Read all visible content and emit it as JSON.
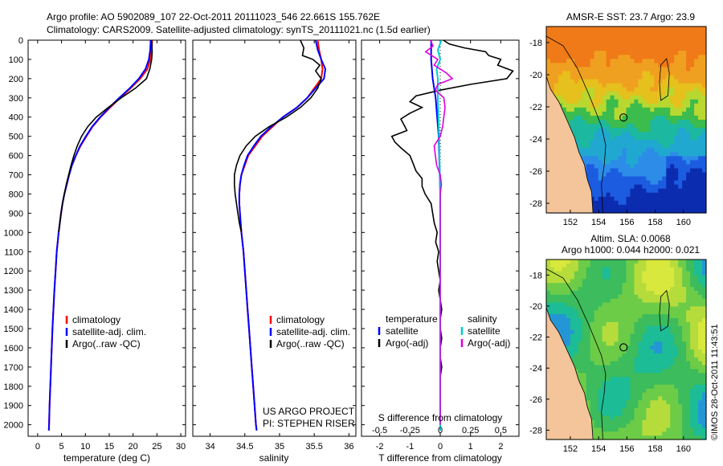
{
  "header": {
    "line1": "Argo profile: AO 5902089_107 22-Oct-2011 20111023_546 22.661S 155.762E",
    "line2": "Climatology: CARS2009. Satellite-adjusted climatology: synTS_20111021.nc (1.5d earlier)"
  },
  "chart_data": [
    {
      "type": "line",
      "id": "temperature",
      "xlabel": "temperature (deg C)",
      "ylabel": "depth",
      "xlim": [
        -2,
        31
      ],
      "ylim": [
        0,
        2060
      ],
      "y_inverted": true,
      "x_ticks": [
        0,
        5,
        10,
        15,
        20,
        25,
        30
      ],
      "y_ticks": [
        0,
        100,
        200,
        300,
        400,
        500,
        600,
        700,
        800,
        900,
        1000,
        1100,
        1200,
        1300,
        1400,
        1500,
        1600,
        1700,
        1800,
        1900,
        2000
      ],
      "legend": {
        "position": "lower-right",
        "entries": [
          "climatology",
          "satellite-adj. clim.",
          "Argo(..raw -QC)"
        ]
      },
      "series": [
        {
          "name": "climatology",
          "color": "#ff0000",
          "depth": [
            0,
            50,
            100,
            150,
            200,
            250,
            300,
            350,
            400,
            450,
            500,
            550,
            600,
            650,
            700,
            750,
            800,
            850,
            900,
            1000,
            1100,
            1200,
            1300,
            1400,
            1500,
            1600,
            1700,
            1800,
            1900,
            2000,
            2030
          ],
          "values": [
            24.0,
            23.9,
            23.6,
            23.0,
            21.5,
            19.5,
            17.3,
            15.2,
            13.2,
            11.5,
            10.2,
            9.0,
            8.0,
            7.2,
            6.6,
            6.1,
            5.6,
            5.2,
            4.9,
            4.4,
            4.0,
            3.75,
            3.5,
            3.3,
            3.1,
            2.95,
            2.8,
            2.65,
            2.5,
            2.4,
            2.35
          ]
        },
        {
          "name": "satellite-adj. clim.",
          "color": "#0000ff",
          "depth": [
            0,
            50,
            100,
            150,
            200,
            250,
            300,
            350,
            400,
            450,
            500,
            550,
            600,
            650,
            700,
            750,
            800,
            850,
            900,
            1000,
            1100,
            1200,
            1300,
            1400,
            1500,
            1600,
            1700,
            1800,
            1900,
            2000,
            2030
          ],
          "values": [
            23.7,
            23.6,
            23.3,
            22.6,
            21.2,
            19.3,
            17.1,
            15.0,
            13.1,
            11.4,
            10.1,
            8.9,
            8.0,
            7.2,
            6.6,
            6.1,
            5.6,
            5.2,
            4.9,
            4.4,
            4.0,
            3.75,
            3.5,
            3.3,
            3.1,
            2.95,
            2.8,
            2.65,
            2.5,
            2.4,
            2.35
          ]
        },
        {
          "name": "Argo(..raw -QC)",
          "color": "#000000",
          "depth": [
            0,
            60,
            100,
            150,
            200,
            250,
            300,
            350,
            400,
            450,
            500,
            550,
            600,
            650,
            700,
            750,
            800,
            850,
            900,
            1000
          ],
          "values": [
            23.9,
            24.0,
            23.9,
            23.5,
            22.8,
            20.5,
            17.5,
            14.8,
            12.3,
            10.5,
            9.2,
            8.3,
            7.6,
            7.0,
            6.5,
            6.0,
            5.6,
            5.2,
            4.9,
            4.4
          ]
        }
      ]
    },
    {
      "type": "line",
      "id": "salinity",
      "xlabel": "salinity",
      "ylabel": "",
      "xlim": [
        33.75,
        36.1
      ],
      "ylim": [
        0,
        2060
      ],
      "y_inverted": true,
      "x_ticks": [
        34,
        34.5,
        35,
        35.5,
        36
      ],
      "legend": {
        "position": "lower-right",
        "entries": [
          "climatology",
          "satellite-adj. clim.",
          "Argo(..raw -QC)"
        ]
      },
      "series": [
        {
          "name": "climatology",
          "color": "#ff0000",
          "depth": [
            0,
            50,
            100,
            150,
            200,
            250,
            300,
            350,
            400,
            450,
            500,
            550,
            600,
            650,
            700,
            750,
            800,
            850,
            900,
            1000,
            1100,
            1200,
            1300,
            1400,
            1500,
            1600,
            1700,
            1800,
            1900,
            2000,
            2030
          ],
          "values": [
            35.55,
            35.57,
            35.6,
            35.62,
            35.6,
            35.5,
            35.4,
            35.25,
            35.05,
            34.9,
            34.75,
            34.65,
            34.55,
            34.5,
            34.45,
            34.43,
            34.42,
            34.42,
            34.43,
            34.45,
            34.48,
            34.5,
            34.52,
            34.54,
            34.56,
            34.58,
            34.6,
            34.62,
            34.64,
            34.66,
            34.67
          ]
        },
        {
          "name": "satellite-adj. clim.",
          "color": "#0000ff",
          "depth": [
            0,
            50,
            100,
            150,
            200,
            250,
            300,
            350,
            400,
            450,
            500,
            550,
            600,
            650,
            700,
            750,
            800,
            850,
            900,
            1000,
            1100,
            1200,
            1300,
            1400,
            1500,
            1600,
            1700,
            1800,
            1900,
            2000,
            2030
          ],
          "values": [
            35.52,
            35.55,
            35.6,
            35.66,
            35.64,
            35.52,
            35.4,
            35.25,
            35.05,
            34.88,
            34.73,
            34.63,
            34.54,
            34.49,
            34.45,
            34.43,
            34.42,
            34.42,
            34.43,
            34.45,
            34.48,
            34.5,
            34.52,
            34.54,
            34.56,
            34.58,
            34.6,
            34.62,
            34.64,
            34.66,
            34.67
          ]
        },
        {
          "name": "Argo(..raw -QC)",
          "color": "#000000",
          "depth": [
            0,
            40,
            80,
            100,
            130,
            160,
            200,
            250,
            300,
            350,
            400,
            450,
            500,
            550,
            600,
            650,
            700,
            750,
            800,
            850,
            900,
            950,
            1000
          ],
          "values": [
            35.3,
            35.35,
            35.33,
            35.48,
            35.58,
            35.52,
            35.6,
            35.55,
            35.45,
            35.3,
            35.1,
            34.85,
            34.65,
            34.52,
            34.43,
            34.38,
            34.35,
            34.35,
            34.36,
            34.38,
            34.4,
            34.42,
            34.45
          ]
        }
      ]
    },
    {
      "type": "line",
      "id": "difference",
      "xlabel": "T difference from climatology",
      "xlabel_top": "S difference from climatology",
      "xlim": [
        -2.6,
        2.6
      ],
      "ylim": [
        0,
        2060
      ],
      "y_inverted": true,
      "x_ticks": [
        -2,
        -1,
        0,
        1,
        2
      ],
      "x_ticks_S": [
        -0.5,
        -0.25,
        0,
        0.25,
        0.5
      ],
      "legend_title_left": "temperature",
      "legend_title_right": "salinity",
      "legend": {
        "position": "lower-center",
        "entries": [
          "satellite",
          "Argo(-adj)",
          "satellite",
          "Argo(-adj)"
        ]
      },
      "series": [
        {
          "name": "T satellite",
          "color": "#0000ff",
          "depth": [
            0,
            100,
            200,
            300,
            500,
            800,
            1200,
            1600,
            2030
          ],
          "values": [
            -0.3,
            -0.3,
            -0.25,
            -0.15,
            -0.05,
            0,
            0,
            0,
            0
          ]
        },
        {
          "name": "T Argo(-adj)",
          "color": "#000000",
          "depth": [
            0,
            20,
            40,
            60,
            80,
            100,
            130,
            160,
            200,
            230,
            260,
            290,
            320,
            350,
            380,
            410,
            440,
            470,
            500,
            530,
            560,
            600,
            640,
            680,
            720,
            760,
            800,
            850,
            900,
            950,
            1000,
            1050,
            1100,
            1150,
            1200,
            1250,
            1300,
            1350,
            1400,
            1450,
            1500,
            1550,
            1600,
            1650,
            1700,
            1750,
            1800,
            1850,
            1900,
            1950,
            2000,
            2030
          ],
          "values": [
            0.1,
            0.3,
            0.8,
            1.5,
            1.6,
            2.0,
            1.9,
            2.4,
            2.2,
            1.0,
            0,
            -0.8,
            -1.0,
            -0.6,
            -1.0,
            -1.3,
            -1.2,
            -1.1,
            -1.6,
            -1.5,
            -1.3,
            -1.0,
            -0.9,
            -0.8,
            -0.6,
            -0.6,
            -0.5,
            -0.3,
            -0.25,
            -0.2,
            -0.1,
            -0.15,
            -0.05,
            -0.1,
            -0.05,
            0,
            -0.05,
            0,
            0.05,
            0,
            0,
            0.05,
            0,
            0,
            0.05,
            0,
            0,
            0,
            0,
            0,
            0,
            0
          ]
        },
        {
          "name": "S satellite",
          "color": "#00cccc",
          "depth": [
            0,
            50,
            100,
            150,
            200,
            300,
            500,
            800,
            1200,
            1600,
            2030
          ],
          "values": [
            0.01,
            -0.02,
            0,
            -0.03,
            -0.02,
            -0.02,
            -0.01,
            0,
            0,
            0,
            0
          ]
        },
        {
          "name": "S Argo(-adj)",
          "color": "#dd00dd",
          "depth": [
            0,
            30,
            60,
            100,
            130,
            170,
            200,
            230,
            260,
            300,
            350,
            400,
            450,
            500,
            550,
            600,
            650,
            700,
            750,
            800,
            850,
            900,
            950,
            1000,
            1100,
            1200,
            1300,
            1400,
            1500,
            1600,
            1700,
            1800,
            1900,
            2000
          ],
          "values": [
            -0.08,
            -0.06,
            -0.12,
            -0.02,
            -0.05,
            0.05,
            0.1,
            -0.02,
            -0.04,
            0.03,
            0.04,
            0.03,
            0.02,
            0.0,
            -0.05,
            -0.04,
            -0.03,
            0.0,
            0.01,
            0.0,
            0,
            0,
            0,
            0,
            0,
            0,
            0,
            0,
            0,
            0,
            0,
            0,
            0,
            0
          ]
        }
      ]
    }
  ],
  "labels": {
    "legend_climatology": "climatology",
    "legend_satellite_clim": "satellite-adj. clim.",
    "legend_argo_raw": "Argo(..raw -QC)",
    "diff_temperature": "temperature",
    "diff_salinity": "salinity",
    "diff_satellite": "satellite",
    "diff_argo": "Argo(-adj)",
    "project_line1": "US ARGO PROJECT",
    "project_line2": "PI: STEPHEN RISER",
    "s_diff_label": "S difference from climatology",
    "t_diff_label": "T difference from climatology",
    "temp_xlabel": "temperature (deg C)",
    "sal_xlabel": "salinity"
  },
  "depth_ticks": [
    "0",
    "100",
    "200",
    "300",
    "400",
    "500",
    "600",
    "700",
    "800",
    "900",
    "1000",
    "1100",
    "1200",
    "1300",
    "1400",
    "1500",
    "1600",
    "1700",
    "1800",
    "1900",
    "2000"
  ],
  "temp_ticks": [
    "0",
    "5",
    "10",
    "15",
    "20",
    "25",
    "30"
  ],
  "sal_ticks": [
    "34",
    "34.5",
    "35",
    "35.5",
    "36"
  ],
  "t_ticks": [
    "-2",
    "-1",
    "0",
    "1",
    "2"
  ],
  "s_ticks": [
    "-0.5",
    "-0.25",
    "0",
    "0.25",
    "0.5"
  ],
  "maps": {
    "sst_title": "AMSR-E SST: 23.7 Argo: 23.9",
    "sla_title1": "Altim. SLA: 0.0068",
    "sla_title2": "Argo h1000: 0.044 h2000: 0.021",
    "lon_ticks": [
      "152",
      "154",
      "156",
      "158",
      "160"
    ],
    "lat_ticks": [
      "-18",
      "-20",
      "-22",
      "-24",
      "-26",
      "-28"
    ],
    "argo_lon": 155.762,
    "argo_lat": -22.661,
    "land_color": "#f4c49a"
  },
  "footer": "©IMOS 28-Oct-2011 11:43:51"
}
